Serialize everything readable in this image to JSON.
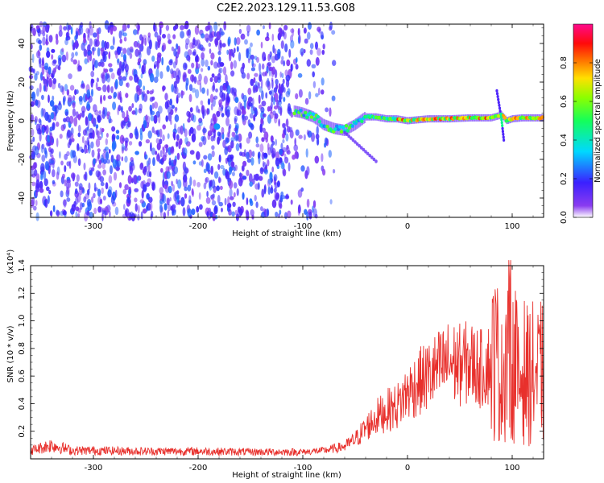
{
  "page": {
    "title": "C2E2.2023.129.11.53.G08"
  },
  "colors": {
    "snr_line": "#e8302c",
    "frame": "#000000",
    "background": "#ffffff"
  },
  "chart_data": [
    {
      "type": "heatmap",
      "title": "C2E2.2023.129.11.53.G08",
      "xlabel": "Height of straight line (km)",
      "ylabel": "Frequency (Hz)",
      "xlim": [
        -360,
        130
      ],
      "ylim": [
        -50,
        50
      ],
      "x_ticks": [
        -300,
        -200,
        -100,
        0,
        100
      ],
      "x_tick_labels": [
        "-300",
        "-200",
        "-100",
        "0",
        "100"
      ],
      "y_ticks": [
        -40,
        -20,
        0,
        20,
        40
      ],
      "y_tick_labels": [
        "-40",
        "-20",
        "0",
        "20",
        "40"
      ],
      "colorbar": {
        "label": "Normalized spectral amplitude",
        "range": [
          0,
          1
        ],
        "ticks": [
          0.0,
          0.2,
          0.4,
          0.6,
          0.8
        ],
        "tick_labels": [
          "0.0",
          "0.2",
          "0.4",
          "0.6",
          "0.8"
        ],
        "colormap": "rainbow (violet → blue → cyan → green → yellow → red → magenta)"
      },
      "noise_region": {
        "x_range": [
          -360,
          -80
        ],
        "y_range": [
          -50,
          50
        ],
        "typical_amplitude": 0.15
      },
      "signal_track": [
        {
          "x": -108,
          "freq": 5
        },
        {
          "x": -100,
          "freq": 4
        },
        {
          "x": -90,
          "freq": 2
        },
        {
          "x": -80,
          "freq": -2
        },
        {
          "x": -70,
          "freq": -4
        },
        {
          "x": -60,
          "freq": -5
        },
        {
          "x": -50,
          "freq": -2
        },
        {
          "x": -40,
          "freq": 2
        },
        {
          "x": -30,
          "freq": 2
        },
        {
          "x": -20,
          "freq": 1
        },
        {
          "x": -10,
          "freq": 1
        },
        {
          "x": 0,
          "freq": 0
        },
        {
          "x": 20,
          "freq": 1
        },
        {
          "x": 40,
          "freq": 1
        },
        {
          "x": 60,
          "freq": 1.5
        },
        {
          "x": 80,
          "freq": 1.5
        },
        {
          "x": 90,
          "freq": 3
        },
        {
          "x": 95,
          "freq": 0
        },
        {
          "x": 100,
          "freq": 1
        },
        {
          "x": 110,
          "freq": 1.5
        },
        {
          "x": 130,
          "freq": 1.5
        }
      ]
    },
    {
      "type": "line",
      "xlabel": "Height of straight line (km)",
      "ylabel": "SNR (10 * v/v)",
      "y_multiplier_label": "(x10⁴)",
      "xlim": [
        -360,
        130
      ],
      "ylim": [
        0,
        14000
      ],
      "x_ticks": [
        -300,
        -200,
        -100,
        0,
        100
      ],
      "x_tick_labels": [
        "-300",
        "-200",
        "-100",
        "0",
        "100"
      ],
      "y_ticks": [
        2000,
        4000,
        6000,
        8000,
        10000,
        12000,
        14000
      ],
      "y_tick_labels": [
        "0.2",
        "0.4",
        "0.6",
        "0.8",
        "1.0",
        "1.2",
        "1.4"
      ],
      "series": [
        {
          "color": "#e8302c",
          "x": [
            -360,
            -340,
            -320,
            -300,
            -250,
            -200,
            -150,
            -100,
            -80,
            -60,
            -50,
            -40,
            -30,
            -20,
            -10,
            0,
            10,
            20,
            30,
            40,
            50,
            60,
            70,
            80,
            85,
            90,
            95,
            100,
            103,
            106,
            110,
            115,
            120,
            125,
            130
          ],
          "y": [
            600,
            1000,
            600,
            600,
            550,
            550,
            500,
            500,
            600,
            900,
            1400,
            2200,
            3000,
            3500,
            3800,
            4800,
            5500,
            6000,
            6500,
            7000,
            6800,
            7000,
            6500,
            7000,
            7500,
            5500,
            9000,
            6000,
            8000,
            5000,
            6500,
            6000,
            6200,
            6000,
            6500
          ]
        }
      ]
    }
  ]
}
